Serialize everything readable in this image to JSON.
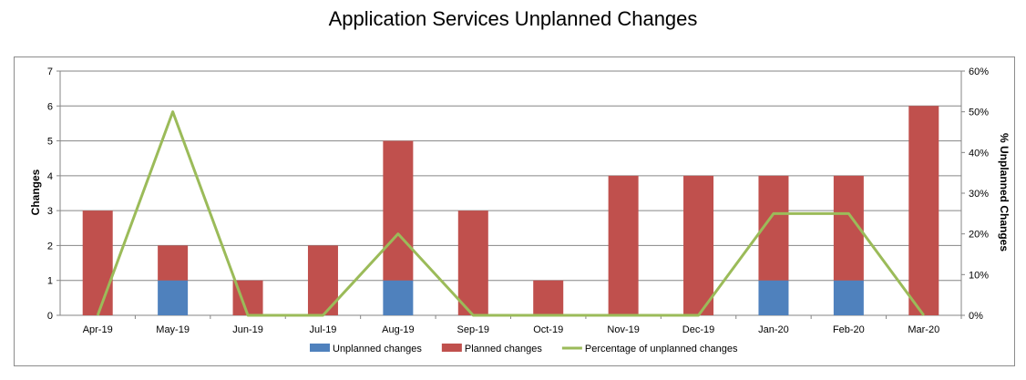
{
  "title": "Application Services Unplanned Changes",
  "chart_data": {
    "type": "bar",
    "stacked": true,
    "title": "Application Services Unplanned Changes",
    "categories": [
      "Apr-19",
      "May-19",
      "Jun-19",
      "Jul-19",
      "Aug-19",
      "Sep-19",
      "Oct-19",
      "Nov-19",
      "Dec-19",
      "Jan-20",
      "Feb-20",
      "Mar-20"
    ],
    "series": [
      {
        "name": "Unplanned changes",
        "type": "bar",
        "axis": "left",
        "color": "#4f81bd",
        "values": [
          0,
          1,
          0,
          0,
          1,
          0,
          0,
          0,
          0,
          1,
          1,
          0
        ]
      },
      {
        "name": "Planned changes",
        "type": "bar",
        "axis": "left",
        "color": "#c0504d",
        "values": [
          3,
          1,
          1,
          2,
          4,
          3,
          1,
          4,
          4,
          3,
          3,
          6
        ]
      },
      {
        "name": "Percentage of unplanned changes",
        "type": "line",
        "axis": "right",
        "color": "#9bbb59",
        "values": [
          0,
          50,
          0,
          0,
          20,
          0,
          0,
          0,
          0,
          25,
          25,
          0
        ]
      }
    ],
    "ylabel": "Changes",
    "ylim": [
      0,
      7
    ],
    "yticks": [
      "0",
      "1",
      "2",
      "3",
      "4",
      "5",
      "6",
      "7"
    ],
    "y2label": "% Unplanned Changes",
    "y2lim": [
      0,
      60
    ],
    "y2ticks": [
      "0%",
      "10%",
      "20%",
      "30%",
      "40%",
      "50%",
      "60%"
    ],
    "grid": true,
    "legend": "bottom"
  }
}
